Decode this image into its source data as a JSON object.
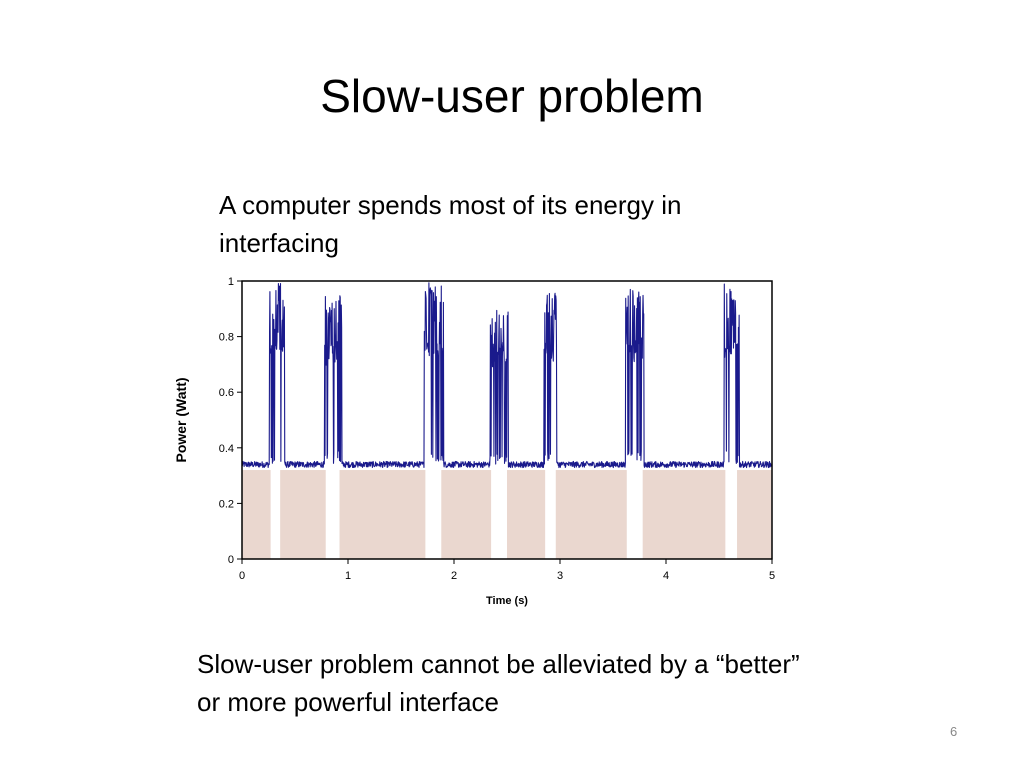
{
  "slide": {
    "title": "Slow-user problem",
    "intro": "A computer spends most of its energy in interfacing",
    "outro": "Slow-user problem cannot be alleviated by a “better” or more powerful interface",
    "page_number": "6"
  },
  "chart_data": {
    "type": "line",
    "title": "",
    "xlabel": "Time (s)",
    "ylabel": "Power (Watt)",
    "xlim": [
      0,
      5
    ],
    "ylim": [
      0,
      1
    ],
    "xticks": [
      "0",
      "1",
      "2",
      "3",
      "4",
      "5"
    ],
    "yticks": [
      "0",
      "0.2",
      "0.4",
      "0.6",
      "0.8",
      "1"
    ],
    "grid": false,
    "legend": "none",
    "baseline_power": 0.34,
    "idle_level": 0.32,
    "idle_intervals": [
      [
        0,
        0.27
      ],
      [
        0.36,
        0.79
      ],
      [
        0.92,
        1.73
      ],
      [
        1.88,
        2.35
      ],
      [
        2.5,
        2.86
      ],
      [
        2.96,
        3.63
      ],
      [
        3.78,
        4.56
      ],
      [
        4.67,
        5.0
      ]
    ],
    "bursts": [
      {
        "start": 0.26,
        "end": 0.4,
        "peak": 1.0
      },
      {
        "start": 0.78,
        "end": 0.94,
        "peak": 0.96
      },
      {
        "start": 1.72,
        "end": 1.9,
        "peak": 1.0
      },
      {
        "start": 2.34,
        "end": 2.51,
        "peak": 0.96
      },
      {
        "start": 2.85,
        "end": 2.97,
        "peak": 0.96
      },
      {
        "start": 3.62,
        "end": 3.79,
        "peak": 0.97
      },
      {
        "start": 4.55,
        "end": 4.69,
        "peak": 1.0
      }
    ],
    "colors": {
      "line": "#1a1a8c",
      "idle_fill": "#ead7cf",
      "axis": "#000000"
    }
  }
}
